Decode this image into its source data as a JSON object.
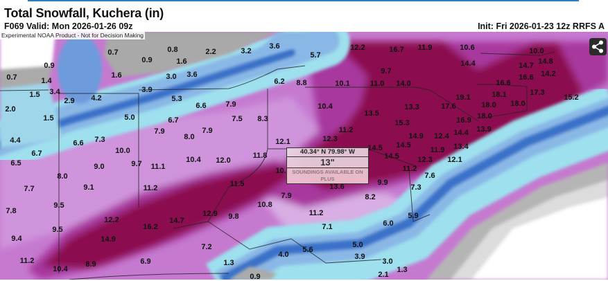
{
  "header": {
    "title": "Total Snowfall, Kuchera (in)",
    "valid": "F069 Valid: Mon 2026-01-26 09z",
    "init": "Init: Fri 2026-01-23 12z RRFS A"
  },
  "map": {
    "disclaimer": "Experimental NOAA Product - Not for Decision Making",
    "share_icon": "share-icon",
    "colors": {
      "heavy": "#8c1150",
      "moderate": "#b45cc0",
      "light": "#d7a6e0",
      "blue": "#3b72c9",
      "cyan": "#9ee0ee",
      "trace": "#a9a9a9"
    },
    "labels": [
      "0.7",
      "0.8",
      "2.2",
      "3.2",
      "3.6",
      "0.9",
      "1.6",
      "0.9",
      "0.7",
      "1.4",
      "1.6",
      "3.0",
      "3.6",
      "1.5",
      "3.4",
      "3.9",
      "2.9",
      "4.2",
      "5.3",
      "6.6",
      "7.9",
      "6.2",
      "8.8",
      "2.0",
      "1.5",
      "5.0",
      "6.7",
      "7.5",
      "8.3",
      "7.9",
      "8.0",
      "7.9",
      "4.4",
      "6.6",
      "7.3",
      "12.1",
      "6.7",
      "10.0",
      "11.8",
      "5.7",
      "12.2",
      "16.7",
      "11.9",
      "10.6",
      "10.0",
      "14.4",
      "14.7",
      "14.8",
      "9.7",
      "14.2",
      "16.6",
      "10.1",
      "11.0",
      "14.0",
      "16.6",
      "18.1",
      "17.3",
      "15.2",
      "19.1",
      "10.4",
      "17.6",
      "18.0",
      "18.0",
      "13.3",
      "13.5",
      "18.0",
      "16.9",
      "15.3",
      "13.9",
      "11.2",
      "14.9",
      "12.4",
      "14.4",
      "12.3",
      "14.5",
      "14.5",
      "13.4",
      "11.9",
      "14.5",
      "12.3",
      "12.1",
      "6.5",
      "9.0",
      "9.7",
      "11.1",
      "10.4",
      "12.0",
      "8.0",
      "10.",
      "7.7",
      "9.1",
      "11.2",
      "11.5",
      "7.9",
      "9.5",
      "10.8",
      "7.8",
      "12.9",
      "9.8",
      "12.2",
      "16.2",
      "14.7",
      "9.5",
      "9.4",
      "14.9",
      "7.2",
      "4.0",
      "11.2",
      "1.3",
      "10.4",
      "8.9",
      "6.9",
      "0.9",
      "11.2",
      "7.6",
      "9.9",
      "13.6",
      "7.3",
      "8.2",
      "11.2",
      "5.9",
      "6.0",
      "7.1",
      "5.0",
      "5.6",
      "3.9",
      "3.0",
      "1.3",
      "2.1"
    ]
  },
  "popup": {
    "coords": "40.34° N 79.98° W",
    "value": "13\"",
    "note": "SOUNDINGS AVAILABLE ON PLUS"
  }
}
